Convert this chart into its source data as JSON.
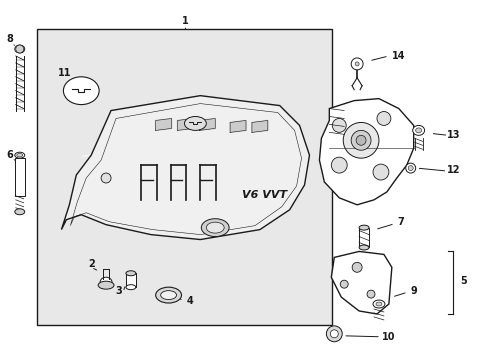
{
  "bg_color": "#ffffff",
  "line_color": "#1a1a1a",
  "box_fill": "#e8e8e8",
  "cover_fill": "#f0f0f0",
  "white": "#ffffff"
}
